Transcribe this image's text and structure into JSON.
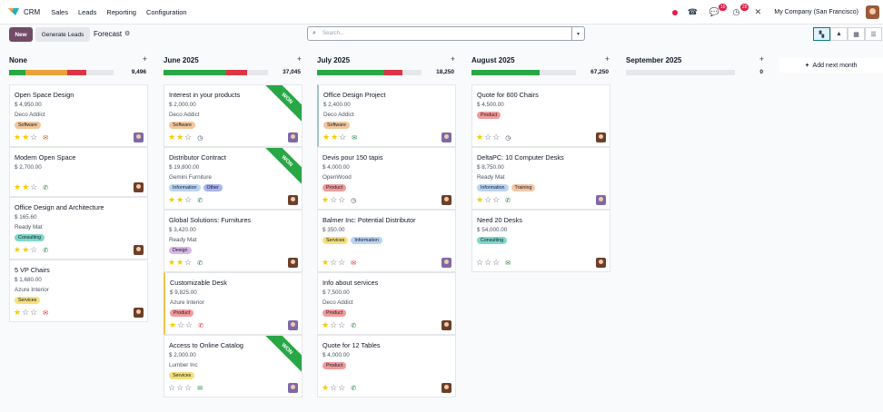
{
  "app": {
    "name": "CRM",
    "menu": [
      "Sales",
      "Leads",
      "Reporting",
      "Configuration"
    ],
    "company": "My Company (San Francisco)",
    "badges": {
      "chat": "10",
      "activity": "28"
    }
  },
  "control": {
    "new_label": "New",
    "generate_label": "Generate Leads",
    "breadcrumb": "Forecast",
    "search_placeholder": "Search..."
  },
  "board": {
    "add_month_label": "Add next month",
    "columns": [
      {
        "title": "None",
        "amount": "9,496",
        "progress": [
          {
            "color": "#28a745",
            "pct": 16
          },
          {
            "color": "#e9a23b",
            "pct": 40
          },
          {
            "color": "#dc3545",
            "pct": 18
          }
        ],
        "cards": [
          {
            "title": "Open Space Design",
            "amount": "$ 4,950.00",
            "company": "Deco Addict",
            "tags": [
              {
                "label": "Software",
                "cls": "tg-software"
              }
            ],
            "stars": 2,
            "activity": "mail-orange",
            "avatar": "purple"
          },
          {
            "title": "Modern Open Space",
            "amount": "$ 2,700.00",
            "company": "",
            "tags": [],
            "stars": 2,
            "activity": "phone-green",
            "avatar": "brown"
          },
          {
            "title": "Office Design and Architecture",
            "amount": "$ 165.60",
            "company": "Ready Mat",
            "tags": [
              {
                "label": "Consulting",
                "cls": "tg-consulting"
              }
            ],
            "stars": 2,
            "activity": "phone-green",
            "avatar": "brown"
          },
          {
            "title": "5 VP Chairs",
            "amount": "$ 1,680.00",
            "company": "Azure Interior",
            "tags": [
              {
                "label": "Services",
                "cls": "tg-services"
              }
            ],
            "stars": 1,
            "activity": "mail-red",
            "avatar": "brown"
          }
        ]
      },
      {
        "title": "June 2025",
        "amount": "37,045",
        "progress": [
          {
            "color": "#28a745",
            "pct": 60
          },
          {
            "color": "#dc3545",
            "pct": 20
          }
        ],
        "cards": [
          {
            "title": "Interest in your products",
            "amount": "$ 2,000.00",
            "company": "Deco Addict",
            "tags": [
              {
                "label": "Software",
                "cls": "tg-software"
              }
            ],
            "stars": 2,
            "activity": "clock",
            "avatar": "purple",
            "won": "WON"
          },
          {
            "title": "Distributor Contract",
            "amount": "$ 19,800.00",
            "company": "Gemini Furniture",
            "tags": [
              {
                "label": "Information",
                "cls": "tg-information"
              },
              {
                "label": "Other",
                "cls": "tg-other"
              }
            ],
            "stars": 2,
            "activity": "phone-green",
            "avatar": "brown",
            "won": "WON"
          },
          {
            "title": "Global Solutions: Furnitures",
            "amount": "$ 3,420.00",
            "company": "Ready Mat",
            "tags": [
              {
                "label": "Design",
                "cls": "tg-design"
              }
            ],
            "stars": 2,
            "activity": "phone-green",
            "avatar": "brown"
          },
          {
            "title": "Customizable Desk",
            "amount": "$ 9,825.00",
            "company": "Azure Interior",
            "tags": [
              {
                "label": "Product",
                "cls": "tg-product"
              }
            ],
            "stars": 1,
            "activity": "phone-red",
            "avatar": "purple"
          },
          {
            "title": "Access to Online Catalog",
            "amount": "$ 2,000.00",
            "company": "Lumber Inc",
            "tags": [
              {
                "label": "Services",
                "cls": "tg-services"
              }
            ],
            "stars": 0,
            "activity": "mail-green",
            "avatar": "purple",
            "won": "WON"
          }
        ]
      },
      {
        "title": "July 2025",
        "amount": "18,250",
        "progress": [
          {
            "color": "#28a745",
            "pct": 64
          },
          {
            "color": "#dc3545",
            "pct": 18
          }
        ],
        "cards": [
          {
            "title": "Office Design Project",
            "amount": "$ 2,400.00",
            "company": "Deco Addict",
            "tags": [
              {
                "label": "Software",
                "cls": "tg-software"
              }
            ],
            "stars": 2,
            "activity": "mail-green",
            "avatar": "purple"
          },
          {
            "title": "Devis pour 150 tapis",
            "amount": "$ 4,000.00",
            "company": "OpenWood",
            "tags": [
              {
                "label": "Product",
                "cls": "tg-product"
              }
            ],
            "stars": 1,
            "activity": "clock",
            "avatar": "brown"
          },
          {
            "title": "Balmer Inc: Potential Distributor",
            "amount": "$ 350.00",
            "company": "",
            "tags": [
              {
                "label": "Services",
                "cls": "tg-services"
              },
              {
                "label": "Information",
                "cls": "tg-information"
              }
            ],
            "stars": 1,
            "activity": "mail-red",
            "avatar": "purple"
          },
          {
            "title": "Info about services",
            "amount": "$ 7,500.00",
            "company": "Deco Addict",
            "tags": [
              {
                "label": "Product",
                "cls": "tg-product"
              }
            ],
            "stars": 1,
            "activity": "phone-green",
            "avatar": "brown"
          },
          {
            "title": "Quote for 12 Tables",
            "amount": "$ 4,000.00",
            "company": "",
            "tags": [
              {
                "label": "Product",
                "cls": "tg-product"
              }
            ],
            "stars": 1,
            "activity": "phone-green",
            "avatar": "brown"
          }
        ]
      },
      {
        "title": "August 2025",
        "amount": "67,250",
        "progress": [
          {
            "color": "#28a745",
            "pct": 65
          }
        ],
        "cards": [
          {
            "title": "Quote for 600 Chairs",
            "amount": "$ 4,500.00",
            "company": "",
            "tags": [
              {
                "label": "Product",
                "cls": "tg-product"
              }
            ],
            "stars": 1,
            "activity": "clock",
            "avatar": "brown"
          },
          {
            "title": "DeltaPC: 10 Computer Desks",
            "amount": "$ 8,750.00",
            "company": "Ready Mat",
            "tags": [
              {
                "label": "Information",
                "cls": "tg-information"
              },
              {
                "label": "Training",
                "cls": "tg-training"
              }
            ],
            "stars": 1,
            "activity": "phone-green",
            "avatar": "purple"
          },
          {
            "title": "Need 20 Desks",
            "amount": "$ 54,000.00",
            "company": "",
            "tags": [
              {
                "label": "Consulting",
                "cls": "tg-consulting"
              }
            ],
            "stars": 0,
            "activity": "mail-green",
            "avatar": "brown"
          }
        ]
      },
      {
        "title": "September 2025",
        "amount": "0",
        "progress": [],
        "cards": []
      }
    ]
  }
}
